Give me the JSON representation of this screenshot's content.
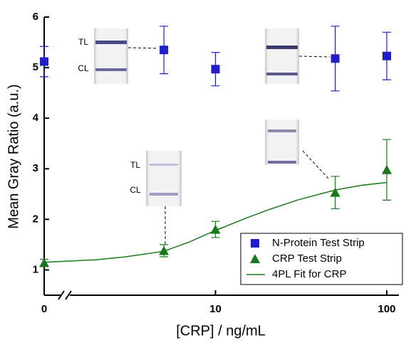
{
  "chart_data": {
    "type": "scatter",
    "x_label": "[CRP] / ng/mL",
    "y_label": "Mean Gray Ratio (a.u.)",
    "log_x": true,
    "axis_break": true,
    "xlim": [
      0,
      100
    ],
    "xticks": [
      0,
      10,
      100
    ],
    "ylim": [
      0.5,
      6
    ],
    "yticks": [
      1,
      2,
      3,
      4,
      5,
      6
    ],
    "legend": "lower right",
    "x": [
      0,
      5,
      10,
      50,
      100
    ],
    "series": [
      {
        "name": "N-Protein Test Strip",
        "color": "#1f1fd0",
        "marker": "square",
        "values": [
          5.12,
          5.35,
          4.97,
          5.18,
          5.23
        ],
        "errors": [
          0.3,
          0.47,
          0.33,
          0.64,
          0.47
        ]
      },
      {
        "name": "CRP Test Strip",
        "color": "#1a7a1a",
        "marker": "triangle",
        "values": [
          1.14,
          1.38,
          1.8,
          2.53,
          2.98
        ],
        "errors": [
          0.07,
          0.12,
          0.16,
          0.32,
          0.6
        ]
      }
    ],
    "fit": {
      "name": "4PL Fit for CRP",
      "color": "#1a7a1a",
      "x": [
        1,
        2,
        3,
        5,
        7,
        10,
        15,
        20,
        30,
        50,
        70,
        100
      ],
      "values": [
        1.15,
        1.2,
        1.26,
        1.37,
        1.55,
        1.78,
        2.02,
        2.18,
        2.38,
        2.58,
        2.67,
        2.73
      ]
    },
    "inset_labels": [
      "TL",
      "CL",
      "TL",
      "CL"
    ]
  }
}
